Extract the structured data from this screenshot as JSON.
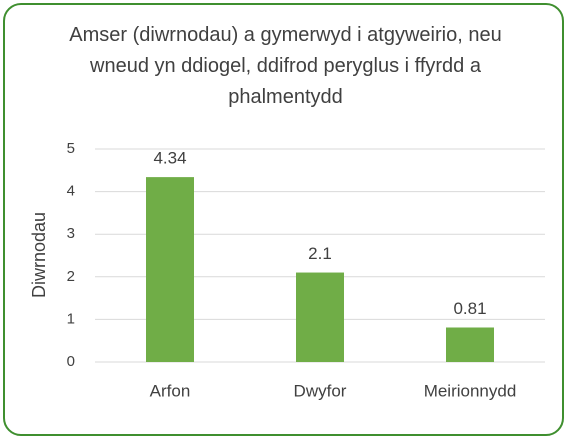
{
  "chart_data": {
    "type": "bar",
    "title": "Amser (diwrnodau) a gymerwyd i atgyweirio, neu wneud yn ddiogel, ddifrod peryglus i ffyrdd a phalmentydd",
    "y_label": "Diwrnodau",
    "categories": [
      "Arfon",
      "Dwyfor",
      "Meirionnydd"
    ],
    "values": [
      4.34,
      2.1,
      0.81
    ],
    "color": "#70ad47",
    "ylim": [
      0,
      5
    ],
    "yticks": [
      0,
      1,
      2,
      3,
      4,
      5
    ],
    "grid": true
  }
}
